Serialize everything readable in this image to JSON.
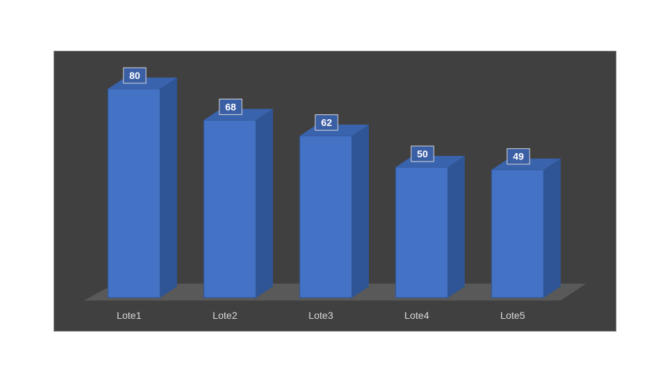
{
  "chart_data": {
    "type": "bar",
    "categories": [
      "Lote1",
      "Lote2",
      "Lote3",
      "Lote4",
      "Lote5"
    ],
    "values": [
      80,
      68,
      62,
      50,
      49
    ],
    "title": "",
    "xlabel": "",
    "ylabel": "",
    "ylim": [
      0,
      90
    ],
    "grid": false,
    "legend": "none",
    "colors": {
      "background": "#404040",
      "bar_front": "#4472c4",
      "bar_side": "#2f5597",
      "bar_top": "#3a63ad",
      "floor": "#595959",
      "label_box_fill": "#3b5fa5",
      "label_box_stroke": "#d9d9d9",
      "text": "#d9d9d9"
    }
  }
}
